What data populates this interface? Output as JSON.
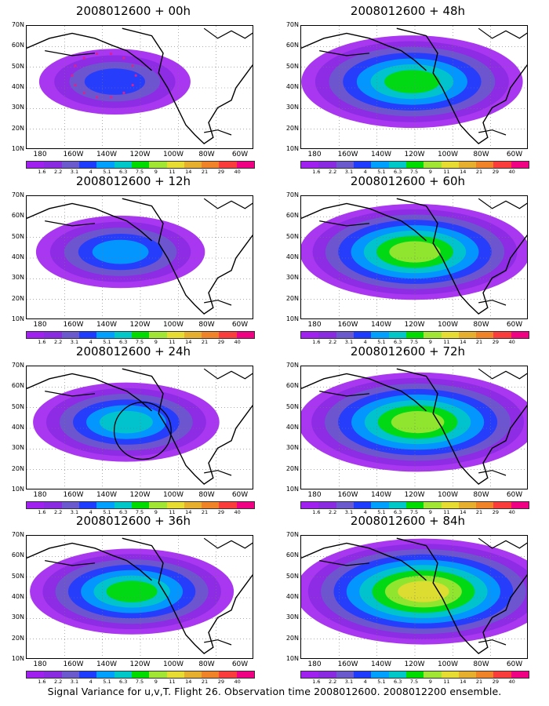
{
  "caption": "Signal Variance for u,v,T. Flight 26. Observation time 2008012600. 2008012200 ensemble.",
  "panels": [
    {
      "title": "2008012600 + 00h",
      "level": 0.15,
      "circle": false,
      "dots": true
    },
    {
      "title": "2008012600 + 48h",
      "level": 0.55,
      "circle": false,
      "dots": false
    },
    {
      "title": "2008012600 + 12h",
      "level": 0.25,
      "circle": false,
      "dots": false
    },
    {
      "title": "2008012600 + 60h",
      "level": 0.6,
      "circle": false,
      "dots": false
    },
    {
      "title": "2008012600 + 24h",
      "level": 0.35,
      "circle": true,
      "dots": false
    },
    {
      "title": "2008012600 + 72h",
      "level": 0.65,
      "circle": false,
      "dots": false
    },
    {
      "title": "2008012600 + 36h",
      "level": 0.45,
      "circle": false,
      "dots": false
    },
    {
      "title": "2008012600 + 84h",
      "level": 0.75,
      "circle": false,
      "dots": false
    }
  ],
  "lat_labels": [
    "70N",
    "60N",
    "50N",
    "40N",
    "30N",
    "20N",
    "10N"
  ],
  "lon_labels": [
    "180",
    "160W",
    "140W",
    "120W",
    "100W",
    "80W",
    "60W"
  ],
  "colorbar": {
    "labels": [
      "1.6",
      "2.2",
      "3.1",
      "4",
      "5.1",
      "6.3",
      "7.5",
      "9",
      "11",
      "14",
      "21",
      "29",
      "40"
    ],
    "colors": [
      "#a020f0",
      "#8a2be2",
      "#6a5acd",
      "#1e3cff",
      "#00a0ff",
      "#00c8c8",
      "#00dc00",
      "#a0e632",
      "#e6dc32",
      "#e6af2d",
      "#f08228",
      "#fa3c3c",
      "#f00082"
    ]
  }
}
